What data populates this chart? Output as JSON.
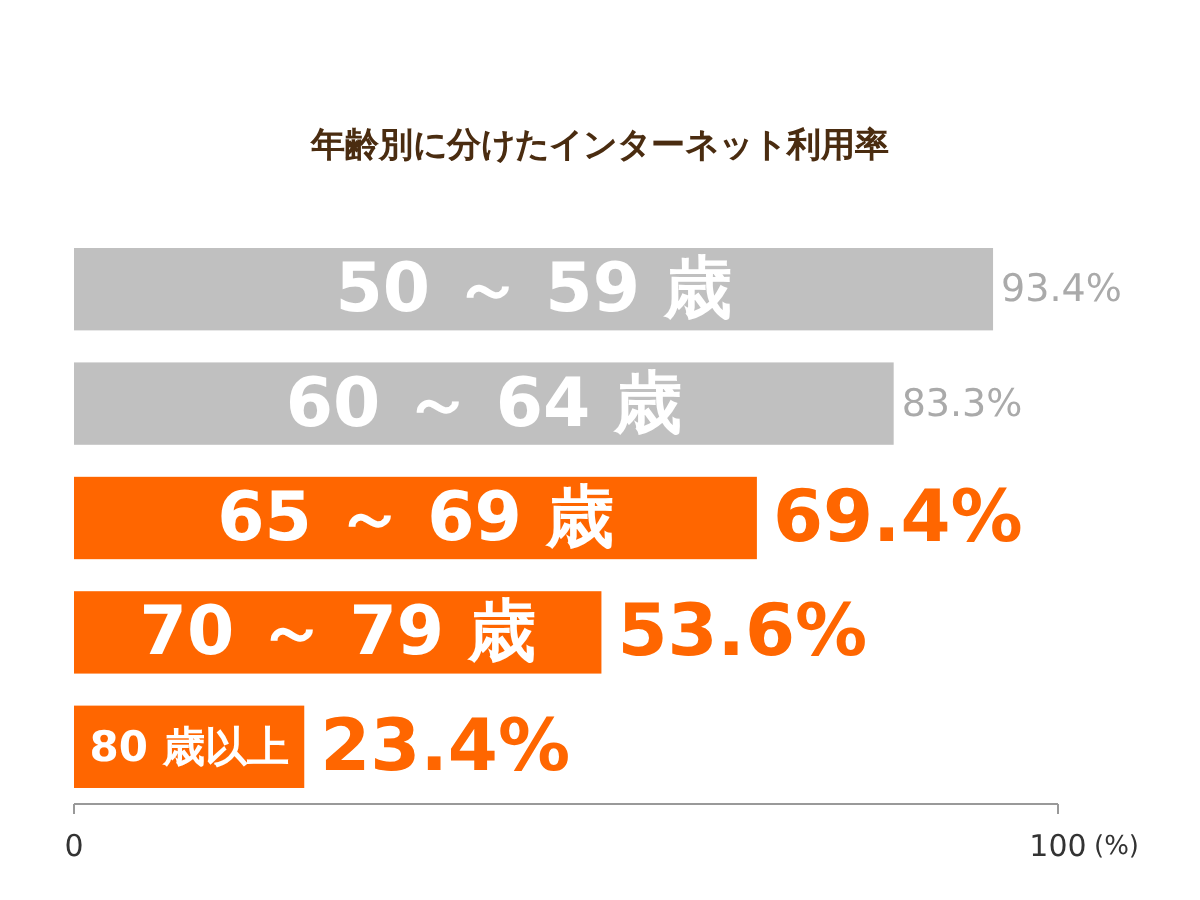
{
  "chart_data": {
    "type": "bar",
    "orientation": "horizontal",
    "title": "年齢別に分けたインターネット利用率",
    "categories": [
      "50 ～ 59 歳",
      "60 ～ 64 歳",
      "65 ～ 69 歳",
      "70 ～ 79 歳",
      "80 歳以上"
    ],
    "values": [
      93.4,
      83.3,
      69.4,
      53.6,
      23.4
    ],
    "colors": [
      "#c0c0c0",
      "#c0c0c0",
      "#ff6600",
      "#ff6600",
      "#ff6600"
    ],
    "value_labels": [
      "93.4%",
      "83.3%",
      "69.4%",
      "53.6%",
      "23.4%"
    ],
    "xlim": [
      0,
      100
    ],
    "xticks": [
      0,
      100
    ],
    "xlabel": "(%)"
  }
}
